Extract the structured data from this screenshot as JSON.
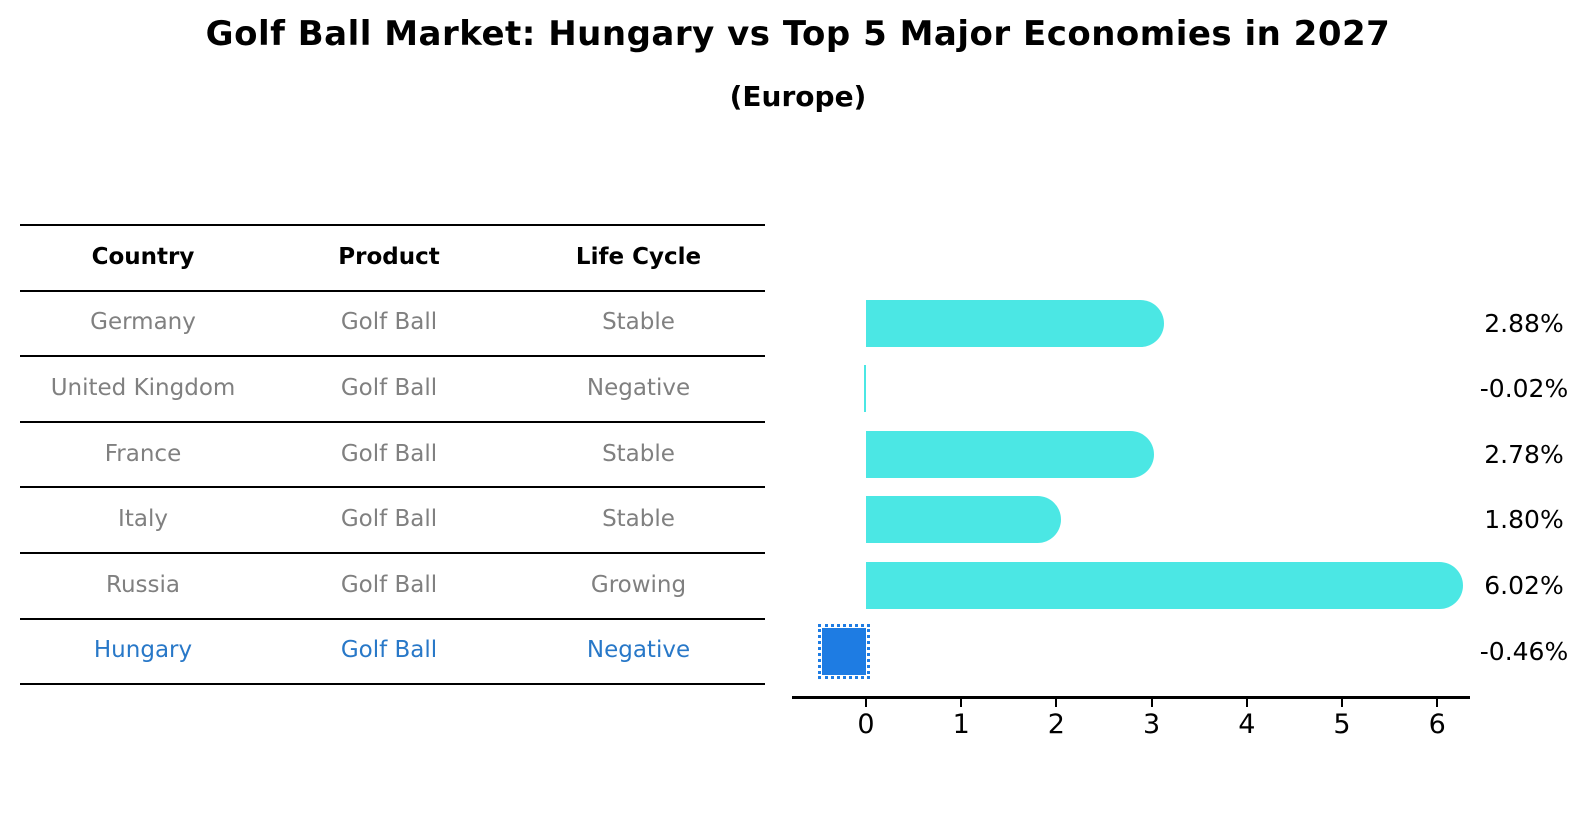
{
  "title": "Golf Ball Market: Hungary vs Top 5 Major Economies in 2027",
  "subtitle": "(Europe)",
  "table": {
    "headers": [
      "Country",
      "Product",
      "Life Cycle"
    ],
    "rows": [
      {
        "country": "Germany",
        "product": "Golf Ball",
        "life_cycle": "Stable",
        "highlight": false
      },
      {
        "country": "United Kingdom",
        "product": "Golf Ball",
        "life_cycle": "Negative",
        "highlight": false
      },
      {
        "country": "France",
        "product": "Golf Ball",
        "life_cycle": "Stable",
        "highlight": false
      },
      {
        "country": "Italy",
        "product": "Golf Ball",
        "life_cycle": "Stable",
        "highlight": false
      },
      {
        "country": "Russia",
        "product": "Golf Ball",
        "life_cycle": "Growing",
        "highlight": false
      },
      {
        "country": "Hungary",
        "product": "Golf Ball",
        "life_cycle": "Negative",
        "highlight": true
      }
    ]
  },
  "chart_data": {
    "type": "bar",
    "orientation": "horizontal",
    "title": "Golf Ball Market: Hungary vs Top 5 Major Economies in 2027",
    "subtitle": "(Europe)",
    "categories": [
      "Germany",
      "United Kingdom",
      "France",
      "Italy",
      "Russia",
      "Hungary"
    ],
    "values": [
      2.88,
      -0.02,
      2.78,
      1.8,
      6.02,
      -0.46
    ],
    "value_labels": [
      "2.88%",
      "-0.02%",
      "2.78%",
      "1.80%",
      "6.02%",
      "-0.46%"
    ],
    "unit": "% growth",
    "xticks": [
      0,
      1,
      2,
      3,
      4,
      5,
      6
    ],
    "xlim": [
      -0.78,
      6.35
    ],
    "grid": false,
    "legend": "none",
    "highlight_index": 5
  },
  "colors": {
    "bar": "#4BE7E4",
    "highlight_bar": "#1E7CE3",
    "row_text": "#808080",
    "highlight_text": "#2878C8",
    "heading_text": "#000000",
    "axis": "#000000"
  }
}
